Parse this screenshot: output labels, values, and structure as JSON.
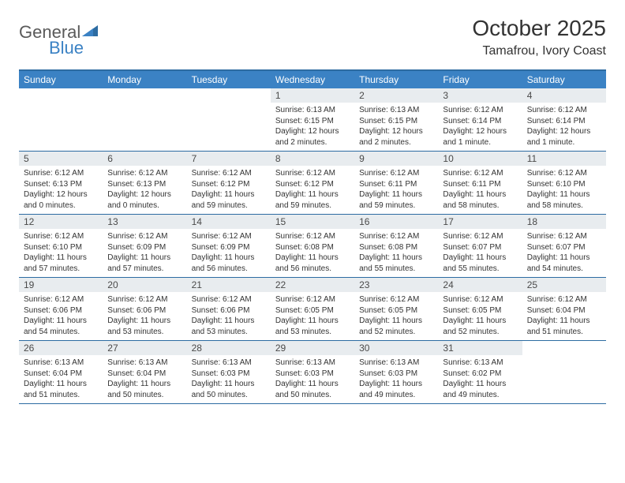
{
  "logo": {
    "part1": "General",
    "part2": "Blue"
  },
  "title": "October 2025",
  "location": "Tamafrou, Ivory Coast",
  "colors": {
    "header_bg": "#3b82c4",
    "border": "#2d6ca2",
    "daynum_bg": "#e8ecef",
    "text": "#333333",
    "logo_gray": "#5a5a5a",
    "logo_blue": "#3b82c4"
  },
  "weekdays": [
    "Sunday",
    "Monday",
    "Tuesday",
    "Wednesday",
    "Thursday",
    "Friday",
    "Saturday"
  ],
  "weeks": [
    [
      {
        "n": "",
        "sr": "",
        "ss": "",
        "dl": ""
      },
      {
        "n": "",
        "sr": "",
        "ss": "",
        "dl": ""
      },
      {
        "n": "",
        "sr": "",
        "ss": "",
        "dl": ""
      },
      {
        "n": "1",
        "sr": "Sunrise: 6:13 AM",
        "ss": "Sunset: 6:15 PM",
        "dl": "Daylight: 12 hours and 2 minutes."
      },
      {
        "n": "2",
        "sr": "Sunrise: 6:13 AM",
        "ss": "Sunset: 6:15 PM",
        "dl": "Daylight: 12 hours and 2 minutes."
      },
      {
        "n": "3",
        "sr": "Sunrise: 6:12 AM",
        "ss": "Sunset: 6:14 PM",
        "dl": "Daylight: 12 hours and 1 minute."
      },
      {
        "n": "4",
        "sr": "Sunrise: 6:12 AM",
        "ss": "Sunset: 6:14 PM",
        "dl": "Daylight: 12 hours and 1 minute."
      }
    ],
    [
      {
        "n": "5",
        "sr": "Sunrise: 6:12 AM",
        "ss": "Sunset: 6:13 PM",
        "dl": "Daylight: 12 hours and 0 minutes."
      },
      {
        "n": "6",
        "sr": "Sunrise: 6:12 AM",
        "ss": "Sunset: 6:13 PM",
        "dl": "Daylight: 12 hours and 0 minutes."
      },
      {
        "n": "7",
        "sr": "Sunrise: 6:12 AM",
        "ss": "Sunset: 6:12 PM",
        "dl": "Daylight: 11 hours and 59 minutes."
      },
      {
        "n": "8",
        "sr": "Sunrise: 6:12 AM",
        "ss": "Sunset: 6:12 PM",
        "dl": "Daylight: 11 hours and 59 minutes."
      },
      {
        "n": "9",
        "sr": "Sunrise: 6:12 AM",
        "ss": "Sunset: 6:11 PM",
        "dl": "Daylight: 11 hours and 59 minutes."
      },
      {
        "n": "10",
        "sr": "Sunrise: 6:12 AM",
        "ss": "Sunset: 6:11 PM",
        "dl": "Daylight: 11 hours and 58 minutes."
      },
      {
        "n": "11",
        "sr": "Sunrise: 6:12 AM",
        "ss": "Sunset: 6:10 PM",
        "dl": "Daylight: 11 hours and 58 minutes."
      }
    ],
    [
      {
        "n": "12",
        "sr": "Sunrise: 6:12 AM",
        "ss": "Sunset: 6:10 PM",
        "dl": "Daylight: 11 hours and 57 minutes."
      },
      {
        "n": "13",
        "sr": "Sunrise: 6:12 AM",
        "ss": "Sunset: 6:09 PM",
        "dl": "Daylight: 11 hours and 57 minutes."
      },
      {
        "n": "14",
        "sr": "Sunrise: 6:12 AM",
        "ss": "Sunset: 6:09 PM",
        "dl": "Daylight: 11 hours and 56 minutes."
      },
      {
        "n": "15",
        "sr": "Sunrise: 6:12 AM",
        "ss": "Sunset: 6:08 PM",
        "dl": "Daylight: 11 hours and 56 minutes."
      },
      {
        "n": "16",
        "sr": "Sunrise: 6:12 AM",
        "ss": "Sunset: 6:08 PM",
        "dl": "Daylight: 11 hours and 55 minutes."
      },
      {
        "n": "17",
        "sr": "Sunrise: 6:12 AM",
        "ss": "Sunset: 6:07 PM",
        "dl": "Daylight: 11 hours and 55 minutes."
      },
      {
        "n": "18",
        "sr": "Sunrise: 6:12 AM",
        "ss": "Sunset: 6:07 PM",
        "dl": "Daylight: 11 hours and 54 minutes."
      }
    ],
    [
      {
        "n": "19",
        "sr": "Sunrise: 6:12 AM",
        "ss": "Sunset: 6:06 PM",
        "dl": "Daylight: 11 hours and 54 minutes."
      },
      {
        "n": "20",
        "sr": "Sunrise: 6:12 AM",
        "ss": "Sunset: 6:06 PM",
        "dl": "Daylight: 11 hours and 53 minutes."
      },
      {
        "n": "21",
        "sr": "Sunrise: 6:12 AM",
        "ss": "Sunset: 6:06 PM",
        "dl": "Daylight: 11 hours and 53 minutes."
      },
      {
        "n": "22",
        "sr": "Sunrise: 6:12 AM",
        "ss": "Sunset: 6:05 PM",
        "dl": "Daylight: 11 hours and 53 minutes."
      },
      {
        "n": "23",
        "sr": "Sunrise: 6:12 AM",
        "ss": "Sunset: 6:05 PM",
        "dl": "Daylight: 11 hours and 52 minutes."
      },
      {
        "n": "24",
        "sr": "Sunrise: 6:12 AM",
        "ss": "Sunset: 6:05 PM",
        "dl": "Daylight: 11 hours and 52 minutes."
      },
      {
        "n": "25",
        "sr": "Sunrise: 6:12 AM",
        "ss": "Sunset: 6:04 PM",
        "dl": "Daylight: 11 hours and 51 minutes."
      }
    ],
    [
      {
        "n": "26",
        "sr": "Sunrise: 6:13 AM",
        "ss": "Sunset: 6:04 PM",
        "dl": "Daylight: 11 hours and 51 minutes."
      },
      {
        "n": "27",
        "sr": "Sunrise: 6:13 AM",
        "ss": "Sunset: 6:04 PM",
        "dl": "Daylight: 11 hours and 50 minutes."
      },
      {
        "n": "28",
        "sr": "Sunrise: 6:13 AM",
        "ss": "Sunset: 6:03 PM",
        "dl": "Daylight: 11 hours and 50 minutes."
      },
      {
        "n": "29",
        "sr": "Sunrise: 6:13 AM",
        "ss": "Sunset: 6:03 PM",
        "dl": "Daylight: 11 hours and 50 minutes."
      },
      {
        "n": "30",
        "sr": "Sunrise: 6:13 AM",
        "ss": "Sunset: 6:03 PM",
        "dl": "Daylight: 11 hours and 49 minutes."
      },
      {
        "n": "31",
        "sr": "Sunrise: 6:13 AM",
        "ss": "Sunset: 6:02 PM",
        "dl": "Daylight: 11 hours and 49 minutes."
      },
      {
        "n": "",
        "sr": "",
        "ss": "",
        "dl": ""
      }
    ]
  ]
}
